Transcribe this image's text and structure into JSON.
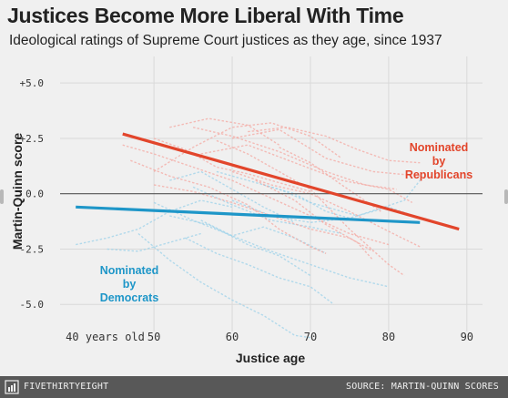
{
  "header": {
    "title": "Justices Become More Liberal With Time",
    "subtitle": "Ideological ratings of Supreme Court justices as they age, since 1937"
  },
  "footer": {
    "brand": "FIVETHIRTYEIGHT",
    "source": "SOURCE: MARTIN-QUINN SCORES"
  },
  "colors": {
    "republican": "#e2452b",
    "democrat": "#1e96c8",
    "republican_faint": "#f4a8a1",
    "democrat_faint": "#9cd1ea",
    "grid": "#d9d9d9",
    "zero_line": "#555555"
  },
  "chart_data": {
    "type": "line",
    "xlabel": "Justice age",
    "ylabel": "Martin-Quinn score",
    "xlim": [
      38,
      92
    ],
    "ylim": [
      -6.8,
      6.2
    ],
    "x_ticks": [
      40,
      50,
      60,
      70,
      80,
      90
    ],
    "x_tick_labels": [
      "40 years old",
      "50",
      "60",
      "70",
      "80",
      "90"
    ],
    "y_ticks": [
      5,
      2.5,
      0,
      -2.5,
      -5
    ],
    "y_tick_labels": [
      "+5.0",
      "+2.5",
      "0.0",
      "-2.5",
      "-5.0"
    ],
    "grid": true,
    "series": [
      {
        "name": "Nominated by Republicans",
        "label_lines": [
          "Nominated",
          "by",
          "Republicans"
        ],
        "color": "#e2452b",
        "x": [
          46,
          89
        ],
        "y": [
          2.7,
          -1.6
        ]
      },
      {
        "name": "Nominated by Democrats",
        "label_lines": [
          "Nominated",
          "by",
          "Democrats"
        ],
        "color": "#1e96c8",
        "x": [
          40,
          84
        ],
        "y": [
          -0.6,
          -1.3
        ]
      }
    ],
    "background_series": {
      "republican": [
        [
          [
            50,
            1.0
          ],
          [
            55,
            2.1
          ],
          [
            60,
            3.0
          ],
          [
            65,
            3.2
          ],
          [
            70,
            2.6
          ],
          [
            74,
            1.6
          ]
        ],
        [
          [
            52,
            3.0
          ],
          [
            57,
            3.4
          ],
          [
            62,
            3.1
          ],
          [
            66,
            2.2
          ]
        ],
        [
          [
            46,
            2.2
          ],
          [
            50,
            1.8
          ],
          [
            55,
            1.2
          ],
          [
            60,
            0.6
          ],
          [
            65,
            -0.2
          ],
          [
            70,
            -1.0
          ],
          [
            75,
            -1.8
          ],
          [
            80,
            -2.3
          ]
        ],
        [
          [
            50,
            0.4
          ],
          [
            55,
            0.1
          ],
          [
            60,
            -0.4
          ],
          [
            65,
            -1.0
          ],
          [
            70,
            -1.6
          ],
          [
            75,
            -2.0
          ],
          [
            78,
            -2.6
          ]
        ],
        [
          [
            60,
            1.0
          ],
          [
            65,
            0.4
          ],
          [
            70,
            0.0
          ],
          [
            75,
            -0.8
          ],
          [
            80,
            -1.7
          ],
          [
            84,
            -2.4
          ]
        ],
        [
          [
            56,
            1.8
          ],
          [
            62,
            2.2
          ],
          [
            68,
            1.4
          ],
          [
            74,
            0.6
          ],
          [
            80,
            0.2
          ],
          [
            83,
            -0.4
          ]
        ],
        [
          [
            63,
            0.6
          ],
          [
            68,
            -0.3
          ],
          [
            72,
            -1.4
          ],
          [
            76,
            -2.2
          ],
          [
            78,
            -3.0
          ]
        ],
        [
          [
            58,
            2.4
          ],
          [
            62,
            1.8
          ],
          [
            66,
            1.0
          ],
          [
            70,
            0.2
          ],
          [
            75,
            -1.6
          ],
          [
            80,
            -3.2
          ],
          [
            82,
            -3.7
          ]
        ],
        [
          [
            62,
            2.8
          ],
          [
            67,
            3.0
          ],
          [
            72,
            2.6
          ],
          [
            76,
            2.0
          ],
          [
            80,
            1.5
          ],
          [
            84,
            1.4
          ]
        ],
        [
          [
            50,
            2.5
          ],
          [
            54,
            2.0
          ],
          [
            58,
            1.2
          ],
          [
            62,
            0.9
          ],
          [
            66,
            0.5
          ],
          [
            70,
            0.1
          ]
        ],
        [
          [
            47,
            1.5
          ],
          [
            52,
            0.8
          ],
          [
            57,
            0.3
          ],
          [
            62,
            -0.5
          ],
          [
            66,
            -1.6
          ],
          [
            70,
            -2.4
          ],
          [
            72,
            -2.7
          ]
        ],
        [
          [
            55,
            3.0
          ],
          [
            60,
            2.6
          ],
          [
            66,
            1.9
          ],
          [
            72,
            1.0
          ],
          [
            77,
            0.4
          ],
          [
            81,
            0.2
          ]
        ],
        [
          [
            66,
            2.1
          ],
          [
            70,
            1.4
          ],
          [
            74,
            0.4
          ],
          [
            79,
            -0.8
          ]
        ],
        [
          [
            60,
            2.5
          ],
          [
            66,
            2.9
          ],
          [
            72,
            1.6
          ],
          [
            78,
            1.0
          ],
          [
            84,
            0.8
          ]
        ]
      ],
      "democrat": [
        [
          [
            40,
            -2.3
          ],
          [
            44,
            -2.0
          ],
          [
            48,
            -1.6
          ],
          [
            52,
            -0.8
          ],
          [
            56,
            -0.3
          ],
          [
            60,
            -0.6
          ]
        ],
        [
          [
            50,
            -0.4
          ],
          [
            55,
            -1.2
          ],
          [
            60,
            -1.9
          ],
          [
            65,
            -2.6
          ],
          [
            70,
            -3.2
          ],
          [
            75,
            -3.8
          ],
          [
            80,
            -4.2
          ]
        ],
        [
          [
            48,
            -1.8
          ],
          [
            52,
            -3.0
          ],
          [
            56,
            -4.0
          ],
          [
            60,
            -4.8
          ],
          [
            64,
            -5.5
          ],
          [
            68,
            -6.4
          ],
          [
            70,
            -6.5
          ]
        ],
        [
          [
            52,
            -1.0
          ],
          [
            57,
            -1.4
          ],
          [
            62,
            -2.3
          ],
          [
            66,
            -2.8
          ],
          [
            70,
            -3.7
          ]
        ],
        [
          [
            55,
            0.3
          ],
          [
            60,
            -0.5
          ],
          [
            65,
            -1.2
          ],
          [
            70,
            -1.5
          ],
          [
            74,
            -1.8
          ]
        ],
        [
          [
            58,
            1.0
          ],
          [
            62,
            0.6
          ],
          [
            66,
            0.2
          ],
          [
            70,
            -0.4
          ],
          [
            76,
            -1.0
          ],
          [
            82,
            -0.3
          ],
          [
            84,
            0.6
          ]
        ],
        [
          [
            52,
            0.6
          ],
          [
            56,
            1.0
          ],
          [
            60,
            0.2
          ],
          [
            64,
            -0.6
          ],
          [
            68,
            -1.3
          ]
        ],
        [
          [
            56,
            -1.2
          ],
          [
            60,
            -1.9
          ],
          [
            64,
            -1.5
          ],
          [
            68,
            -2.0
          ],
          [
            72,
            -2.7
          ]
        ],
        [
          [
            60,
            -0.3
          ],
          [
            65,
            -1.0
          ],
          [
            70,
            -1.3
          ],
          [
            75,
            -1.1
          ],
          [
            80,
            -0.6
          ],
          [
            84,
            -1.1
          ]
        ],
        [
          [
            44,
            -2.5
          ],
          [
            48,
            -2.6
          ],
          [
            52,
            -2.2
          ],
          [
            56,
            -1.8
          ]
        ],
        [
          [
            54,
            -2.0
          ],
          [
            58,
            -2.7
          ],
          [
            62,
            -3.2
          ],
          [
            66,
            -3.8
          ],
          [
            70,
            -4.2
          ],
          [
            73,
            -5.0
          ]
        ],
        [
          [
            64,
            0.4
          ],
          [
            68,
            0.0
          ],
          [
            72,
            -0.8
          ],
          [
            76,
            -1.2
          ]
        ]
      ]
    }
  }
}
